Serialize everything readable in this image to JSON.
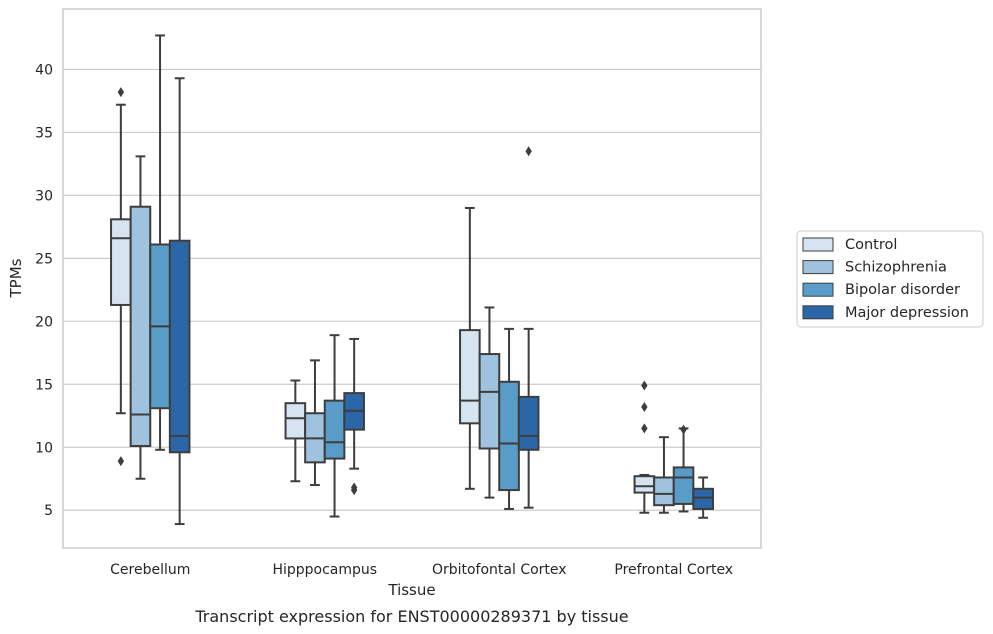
{
  "chart_data": {
    "type": "box",
    "title": "",
    "caption": "Transcript expression for ENST00000289371 by tissue",
    "xlabel": "Tissue",
    "ylabel": "TPMs",
    "ylim": [
      2,
      44.8
    ],
    "yticks": [
      5,
      10,
      15,
      20,
      25,
      30,
      35,
      40
    ],
    "grid": "horizontal",
    "legend_position": "right",
    "categories": [
      "Cerebellum",
      "Hipppocampus",
      "Orbitofontal Cortex",
      "Prefrontal Cortex"
    ],
    "series": [
      {
        "name": "Control",
        "color": "#d6e4f2",
        "boxes": [
          {
            "whislo": 12.7,
            "q1": 21.3,
            "med": 26.6,
            "q3": 28.1,
            "whishi": 37.2,
            "fliers": [
              38.2,
              8.9
            ]
          },
          {
            "whislo": 7.3,
            "q1": 10.7,
            "med": 12.3,
            "q3": 13.5,
            "whishi": 15.3,
            "fliers": []
          },
          {
            "whislo": 6.7,
            "q1": 11.9,
            "med": 13.7,
            "q3": 19.3,
            "whishi": 29.0,
            "fliers": []
          },
          {
            "whislo": 4.8,
            "q1": 6.4,
            "med": 6.9,
            "q3": 7.7,
            "whishi": 7.8,
            "fliers": [
              14.9,
              13.2,
              11.5
            ]
          }
        ]
      },
      {
        "name": "Schizophrenia",
        "color": "#9fc3de",
        "boxes": [
          {
            "whislo": 7.5,
            "q1": 10.1,
            "med": 12.6,
            "q3": 29.1,
            "whishi": 33.1,
            "fliers": []
          },
          {
            "whislo": 7.0,
            "q1": 8.8,
            "med": 10.7,
            "q3": 12.7,
            "whishi": 16.9,
            "fliers": []
          },
          {
            "whislo": 6.0,
            "q1": 9.9,
            "med": 14.4,
            "q3": 17.4,
            "whishi": 21.1,
            "fliers": []
          },
          {
            "whislo": 4.8,
            "q1": 5.4,
            "med": 6.3,
            "q3": 7.6,
            "whishi": 10.8,
            "fliers": []
          }
        ]
      },
      {
        "name": "Bipolar disorder",
        "color": "#5a9cc8",
        "boxes": [
          {
            "whislo": 9.8,
            "q1": 13.1,
            "med": 19.6,
            "q3": 26.1,
            "whishi": 42.7,
            "fliers": []
          },
          {
            "whislo": 4.5,
            "q1": 9.1,
            "med": 10.4,
            "q3": 13.7,
            "whishi": 18.9,
            "fliers": []
          },
          {
            "whislo": 5.1,
            "q1": 6.6,
            "med": 10.3,
            "q3": 15.2,
            "whishi": 19.4,
            "fliers": []
          },
          {
            "whislo": 4.9,
            "q1": 5.5,
            "med": 7.6,
            "q3": 8.4,
            "whishi": 11.5,
            "fliers": [
              11.4
            ]
          }
        ]
      },
      {
        "name": "Major depression",
        "color": "#2b67a8",
        "boxes": [
          {
            "whislo": 3.9,
            "q1": 9.6,
            "med": 10.9,
            "q3": 26.4,
            "whishi": 39.3,
            "fliers": []
          },
          {
            "whislo": 8.3,
            "q1": 11.4,
            "med": 12.9,
            "q3": 14.3,
            "whishi": 18.6,
            "fliers": [
              6.8,
              6.6
            ]
          },
          {
            "whislo": 5.2,
            "q1": 9.8,
            "med": 10.9,
            "q3": 14.0,
            "whishi": 19.4,
            "fliers": [
              33.5
            ]
          },
          {
            "whislo": 4.4,
            "q1": 5.1,
            "med": 6.0,
            "q3": 6.7,
            "whishi": 7.6,
            "fliers": []
          }
        ]
      }
    ]
  }
}
